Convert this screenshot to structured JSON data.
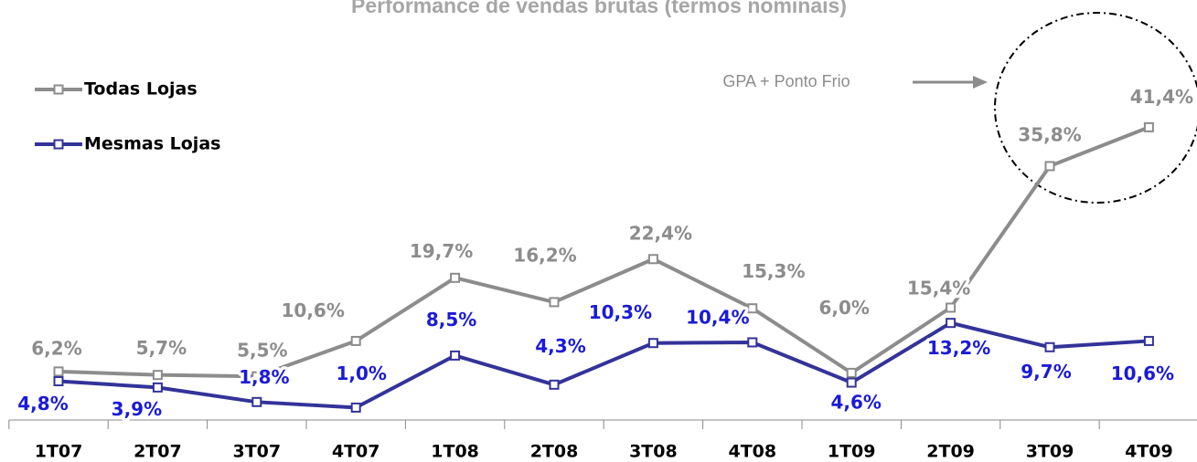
{
  "chart_data": {
    "type": "line",
    "title": "Performance de vendas brutas (termos nominais)",
    "annotation": "GPA + Ponto Frio",
    "categories": [
      "1T07",
      "2T07",
      "3T07",
      "4T07",
      "1T08",
      "2T08",
      "3T08",
      "4T08",
      "1T09",
      "2T09",
      "3T09",
      "4T09"
    ],
    "series": [
      {
        "name": "Todas Lojas",
        "color": "#8c8c8c",
        "label_color": "#8c8c8c",
        "values": [
          6.2,
          5.7,
          5.5,
          10.6,
          19.7,
          16.2,
          22.4,
          15.3,
          6.0,
          15.4,
          35.8,
          41.4
        ],
        "value_labels": [
          "6,2%",
          "5,7%",
          "5,5%",
          "10,6%",
          "19,7%",
          "16,2%",
          "22,4%",
          "15,3%",
          "6,0%",
          "15,4%",
          "35,8%",
          "41,4%"
        ]
      },
      {
        "name": "Mesmas Lojas",
        "color": "#333399",
        "label_color": "#1a1ad9",
        "values": [
          4.8,
          3.9,
          1.8,
          1.0,
          8.5,
          4.3,
          10.3,
          10.4,
          4.6,
          13.2,
          9.7,
          10.6
        ],
        "value_labels": [
          "4,8%",
          "3,9%",
          "1,8%",
          "1,0%",
          "8,5%",
          "4,3%",
          "10,3%",
          "10,4%",
          "4,6%",
          "13,2%",
          "9,7%",
          "10,6%"
        ]
      }
    ]
  }
}
